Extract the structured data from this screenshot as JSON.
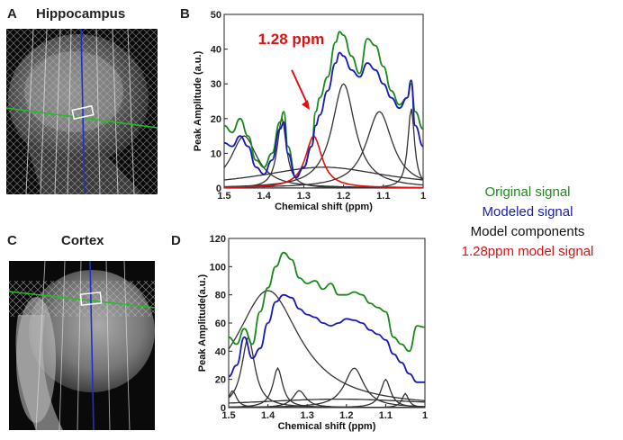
{
  "panels": {
    "a": {
      "letter": "A",
      "title": "Hippocampus"
    },
    "b": {
      "letter": "B"
    },
    "c": {
      "letter": "C",
      "title": "Cortex"
    },
    "d": {
      "letter": "D"
    }
  },
  "legend": [
    {
      "label": "Original signal",
      "color": "#1a8a1a"
    },
    {
      "label": "Modeled signal",
      "color": "#1a1ab8"
    },
    {
      "label": "Model components",
      "color": "#111111"
    },
    {
      "label": "1.28ppm model signal",
      "color": "#e01010"
    }
  ],
  "colors": {
    "original": "#1a8a1a",
    "modeled": "#1a1ab8",
    "component": "#333333",
    "red": "#e01010"
  },
  "chart_data": [
    {
      "type": "line",
      "panel": "B",
      "xlabel": "Chemical shift (ppm)",
      "ylabel": "Peak Amplitude (a.u.)",
      "xlim": [
        1.5,
        1.0
      ],
      "ylim": [
        0,
        50
      ],
      "xticks": [
        "1.5",
        "1.4",
        "1.3",
        "1.2",
        "1.1",
        "1"
      ],
      "yticks": [
        "0",
        "10",
        "20",
        "30",
        "40",
        "50"
      ],
      "annotation": "1.28 ppm",
      "x": [
        1.5,
        1.48,
        1.46,
        1.44,
        1.42,
        1.4,
        1.38,
        1.36,
        1.35,
        1.34,
        1.32,
        1.3,
        1.28,
        1.27,
        1.26,
        1.24,
        1.22,
        1.21,
        1.2,
        1.18,
        1.16,
        1.14,
        1.12,
        1.1,
        1.08,
        1.06,
        1.04,
        1.03,
        1.02,
        1.0
      ],
      "series": [
        {
          "name": "Original signal",
          "values": [
            18,
            16,
            20,
            15,
            8,
            6,
            10,
            19,
            22,
            12,
            3,
            6,
            12,
            22,
            26,
            32,
            42,
            45,
            44,
            38,
            33,
            43,
            41,
            35,
            28,
            24,
            26,
            30,
            22,
            17
          ]
        },
        {
          "name": "Modeled signal",
          "values": [
            13,
            12,
            15,
            12,
            6,
            4,
            8,
            17,
            19,
            10,
            3,
            6,
            12,
            18,
            21,
            28,
            36,
            39,
            38,
            34,
            32,
            36,
            34,
            30,
            26,
            23,
            26,
            31,
            18,
            12
          ]
        },
        {
          "name": "1.28ppm model signal",
          "values": [
            0.2,
            0.3,
            0.4,
            0.5,
            0.8,
            1,
            1.5,
            2.5,
            3,
            4,
            7,
            11,
            15,
            15,
            13,
            8,
            5,
            4,
            3,
            2,
            1.5,
            1.2,
            1,
            0.8,
            0.6,
            0.5,
            0.4,
            0.3,
            0.3,
            0.2
          ]
        }
      ],
      "components": [
        {
          "center": 1.45,
          "amp": 15,
          "width": 0.04
        },
        {
          "center": 1.355,
          "amp": 20,
          "width": 0.014
        },
        {
          "center": 1.2,
          "amp": 30,
          "width": 0.035
        },
        {
          "center": 1.11,
          "amp": 22,
          "width": 0.04
        },
        {
          "center": 1.03,
          "amp": 23,
          "width": 0.01
        },
        {
          "center": 1.25,
          "amp": 6,
          "width": 0.2
        }
      ],
      "red_component": {
        "center": 1.275,
        "amp": 15,
        "width": 0.025
      }
    },
    {
      "type": "line",
      "panel": "D",
      "xlabel": "Chemical shift (ppm)",
      "ylabel": "Peak Amplitude(a.u.)",
      "xlim": [
        1.5,
        1.0
      ],
      "ylim": [
        0,
        120
      ],
      "xticks": [
        "1.5",
        "1.4",
        "1.3",
        "1.2",
        "1.1",
        "1"
      ],
      "yticks": [
        "0",
        "20",
        "40",
        "60",
        "80",
        "100",
        "120"
      ],
      "x": [
        1.5,
        1.48,
        1.46,
        1.44,
        1.42,
        1.4,
        1.38,
        1.36,
        1.34,
        1.32,
        1.3,
        1.28,
        1.26,
        1.24,
        1.22,
        1.2,
        1.18,
        1.16,
        1.14,
        1.12,
        1.1,
        1.08,
        1.06,
        1.04,
        1.02,
        1.0
      ],
      "series": [
        {
          "name": "Original signal",
          "values": [
            50,
            45,
            56,
            45,
            68,
            85,
            100,
            110,
            105,
            92,
            88,
            90,
            84,
            88,
            80,
            80,
            82,
            80,
            74,
            71,
            68,
            50,
            45,
            40,
            58,
            57
          ]
        },
        {
          "name": "Modeled signal",
          "values": [
            22,
            30,
            50,
            35,
            42,
            60,
            75,
            80,
            78,
            70,
            66,
            64,
            60,
            58,
            60,
            63,
            62,
            60,
            55,
            52,
            48,
            38,
            32,
            24,
            18,
            18
          ]
        }
      ],
      "components": [
        {
          "center": 1.4,
          "amp": 83,
          "width": 0.1
        },
        {
          "center": 1.45,
          "amp": 50,
          "width": 0.02
        },
        {
          "center": 1.375,
          "amp": 28,
          "width": 0.015
        },
        {
          "center": 1.18,
          "amp": 28,
          "width": 0.03
        },
        {
          "center": 1.1,
          "amp": 20,
          "width": 0.015
        },
        {
          "center": 1.32,
          "amp": 12,
          "width": 0.02
        },
        {
          "center": 1.49,
          "amp": 12,
          "width": 0.012
        },
        {
          "center": 1.05,
          "amp": 10,
          "width": 0.01
        },
        {
          "center": 1.22,
          "amp": 6,
          "width": 0.3
        }
      ]
    }
  ]
}
